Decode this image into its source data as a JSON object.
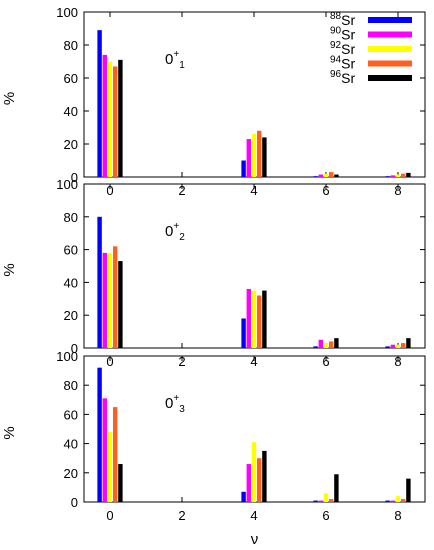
{
  "chart_data": {
    "type": "bar",
    "categories": [
      "0",
      "2",
      "4",
      "6",
      "8"
    ],
    "xlabel": "ν",
    "ylabel": "%",
    "ylim": [
      0,
      100
    ],
    "yticks": [
      "0",
      "20",
      "40",
      "60",
      "80",
      "100"
    ],
    "legend": {
      "position": "top-right",
      "entries": [
        {
          "mass": "88",
          "element": "Sr",
          "color": "#0000ff"
        },
        {
          "mass": "90",
          "element": "Sr",
          "color": "#ff00ff"
        },
        {
          "mass": "92",
          "element": "Sr",
          "color": "#ffff00"
        },
        {
          "mass": "94",
          "element": "Sr",
          "color": "#ff6020"
        },
        {
          "mass": "96",
          "element": "Sr",
          "color": "#000000"
        }
      ]
    },
    "panels": [
      {
        "label_base": "0",
        "label_sup": "+",
        "label_sub": "1",
        "series": [
          {
            "values": [
              89,
              0,
              10,
              0.5,
              0.5
            ]
          },
          {
            "values": [
              74,
              0,
              23,
              1.5,
              1
            ]
          },
          {
            "values": [
              70,
              0,
              26,
              2,
              1.5
            ]
          },
          {
            "values": [
              67,
              0,
              28,
              3,
              2
            ]
          },
          {
            "values": [
              71,
              0,
              24,
              1.5,
              2.5
            ]
          }
        ]
      },
      {
        "label_base": "0",
        "label_sup": "+",
        "label_sub": "2",
        "series": [
          {
            "values": [
              80,
              0,
              18,
              1,
              1
            ]
          },
          {
            "values": [
              58,
              0,
              36,
              5,
              2
            ]
          },
          {
            "values": [
              58,
              0,
              35,
              3,
              2
            ]
          },
          {
            "values": [
              62,
              0,
              32,
              4,
              3
            ]
          },
          {
            "values": [
              53,
              0,
              35,
              6,
              6
            ]
          }
        ]
      },
      {
        "label_base": "0",
        "label_sup": "+",
        "label_sub": "3",
        "series": [
          {
            "values": [
              92,
              0,
              7,
              1,
              1
            ]
          },
          {
            "values": [
              71,
              0,
              26,
              1,
              1
            ]
          },
          {
            "values": [
              48,
              0,
              41,
              6,
              4
            ]
          },
          {
            "values": [
              65,
              0,
              30,
              2,
              2
            ]
          },
          {
            "values": [
              26,
              0,
              35,
              19,
              16
            ]
          }
        ]
      }
    ]
  }
}
